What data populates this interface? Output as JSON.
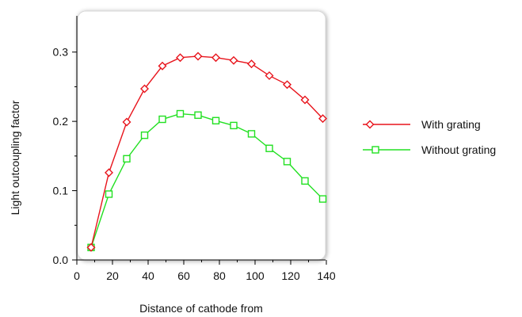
{
  "chart_data": {
    "type": "line",
    "title": "",
    "xlabel": "Distance of cathode from",
    "ylabel": "Light outcoupling factor",
    "xlim": [
      0,
      140
    ],
    "ylim": [
      0,
      0.35
    ],
    "xticks": [
      "0",
      "20",
      "40",
      "60",
      "80",
      "100",
      "120",
      "140"
    ],
    "yticks": [
      "0.0",
      "0.1",
      "0.2",
      "0.3"
    ],
    "grid": false,
    "legend_position": "right",
    "series": [
      {
        "name": "With grating",
        "color": "#e8141c",
        "marker": "diamond",
        "x": [
          8,
          18,
          28,
          38,
          48,
          58,
          68,
          78,
          88,
          98,
          108,
          118,
          128,
          138
        ],
        "y": [
          0.018,
          0.126,
          0.199,
          0.247,
          0.28,
          0.292,
          0.294,
          0.292,
          0.288,
          0.283,
          0.266,
          0.253,
          0.231,
          0.204
        ]
      },
      {
        "name": "Without grating",
        "color": "#22e022",
        "marker": "square",
        "x": [
          8,
          18,
          28,
          38,
          48,
          58,
          68,
          78,
          88,
          98,
          108,
          118,
          128,
          138
        ],
        "y": [
          0.018,
          0.095,
          0.146,
          0.18,
          0.203,
          0.211,
          0.209,
          0.201,
          0.194,
          0.182,
          0.161,
          0.142,
          0.114,
          0.088
        ]
      }
    ]
  }
}
